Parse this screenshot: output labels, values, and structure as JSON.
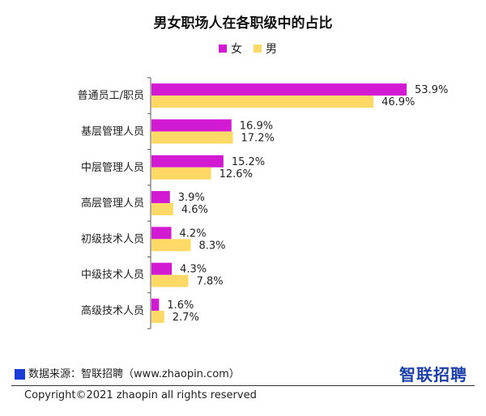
{
  "chart_data": {
    "type": "bar",
    "orientation": "horizontal",
    "title": "男女职场人在各职级中的占比",
    "categories": [
      "普通员工/职员",
      "基层管理人员",
      "中层管理人员",
      "高层管理人员",
      "初级技术人员",
      "中级技术人员",
      "高级技术人员"
    ],
    "series": [
      {
        "name": "女",
        "color": "#d21ad2",
        "values": [
          53.9,
          16.9,
          15.2,
          3.9,
          4.2,
          4.3,
          1.6
        ]
      },
      {
        "name": "男",
        "color": "#ffd966",
        "values": [
          46.9,
          17.2,
          12.6,
          4.6,
          8.3,
          7.8,
          2.7
        ]
      }
    ],
    "value_labels_female": [
      "53.9%",
      "16.9%",
      "15.2%",
      "3.9%",
      "4.2%",
      "4.3%",
      "1.6%"
    ],
    "value_labels_male": [
      "46.9%",
      "17.2%",
      "12.6%",
      "4.6%",
      "8.3%",
      "7.8%",
      "2.7%"
    ],
    "xlim": [
      0,
      60
    ],
    "grid": false,
    "legend_position": "top-center"
  },
  "footer": {
    "source": "数据来源：智联招聘（www.zhaopin.com）",
    "brand": "智联招聘",
    "copyright": "Copyright©2021 zhaopin all rights reserved"
  }
}
